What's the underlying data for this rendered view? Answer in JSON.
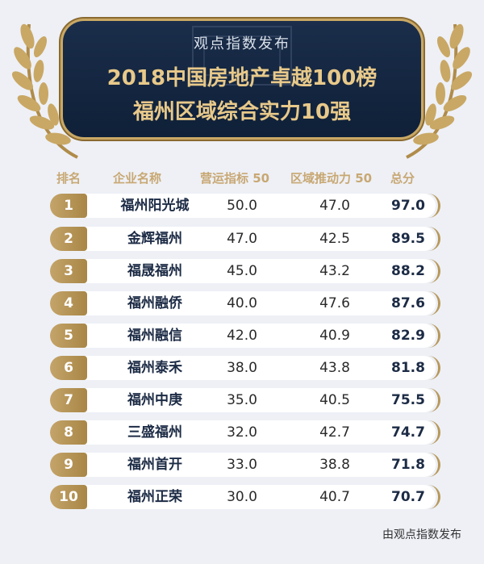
{
  "banner": {
    "subtitle": "观点指数发布",
    "title_line1": "2018中国房地产卓越100榜",
    "title_line2": "福州区域综合实力10强"
  },
  "header": {
    "rank": "排名",
    "company": "企业名称",
    "operations": "营运指标 50",
    "regional": "区域推动力 50",
    "total": "总分"
  },
  "rows": [
    {
      "rank": "1",
      "name": "福州阳光城",
      "ops": "50.0",
      "reg": "47.0",
      "total": "97.0"
    },
    {
      "rank": "2",
      "name": "金辉福州",
      "ops": "47.0",
      "reg": "42.5",
      "total": "89.5"
    },
    {
      "rank": "3",
      "name": "福晟福州",
      "ops": "45.0",
      "reg": "43.2",
      "total": "88.2"
    },
    {
      "rank": "4",
      "name": "福州融侨",
      "ops": "40.0",
      "reg": "47.6",
      "total": "87.6"
    },
    {
      "rank": "5",
      "name": "福州融信",
      "ops": "42.0",
      "reg": "40.9",
      "total": "82.9"
    },
    {
      "rank": "6",
      "name": "福州泰禾",
      "ops": "38.0",
      "reg": "43.8",
      "total": "81.8"
    },
    {
      "rank": "7",
      "name": "福州中庚",
      "ops": "35.0",
      "reg": "40.5",
      "total": "75.5"
    },
    {
      "rank": "8",
      "name": "三盛福州",
      "ops": "32.0",
      "reg": "42.7",
      "total": "74.7"
    },
    {
      "rank": "9",
      "name": "福州首开",
      "ops": "33.0",
      "reg": "38.8",
      "total": "71.8"
    },
    {
      "rank": "10",
      "name": "福州正荣",
      "ops": "30.0",
      "reg": "40.7",
      "total": "70.7"
    }
  ],
  "footer": "由观点指数发布",
  "colors": {
    "gold": "#c8a873",
    "navy": "#1a2d4a",
    "background": "#eef0f6"
  }
}
